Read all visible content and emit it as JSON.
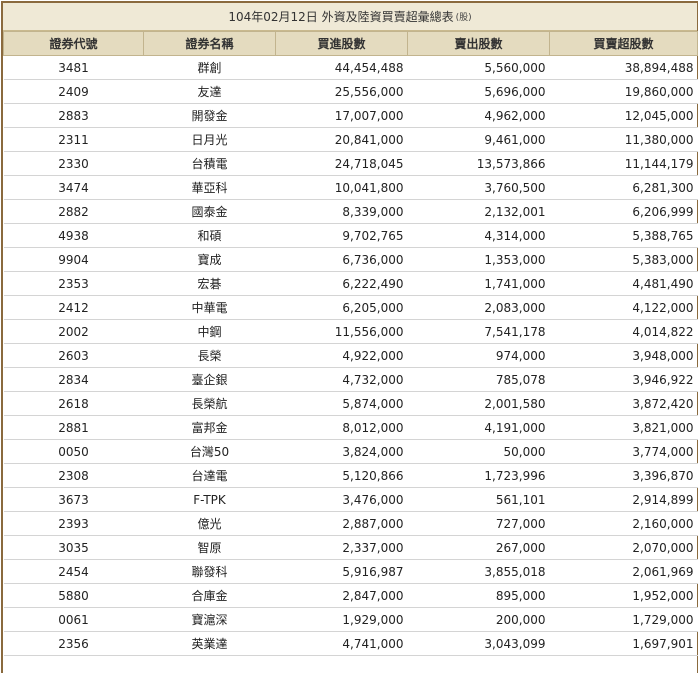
{
  "title": "104年02月12日 外資及陸資買賣超彙總表",
  "title_unit": "(股)",
  "columns": [
    "證券代號",
    "證券名稱",
    "買進股數",
    "賣出股數",
    "買賣超股數"
  ],
  "rows": [
    [
      "3481",
      "群創",
      "44,454,488",
      "5,560,000",
      "38,894,488"
    ],
    [
      "2409",
      "友達",
      "25,556,000",
      "5,696,000",
      "19,860,000"
    ],
    [
      "2883",
      "開發金",
      "17,007,000",
      "4,962,000",
      "12,045,000"
    ],
    [
      "2311",
      "日月光",
      "20,841,000",
      "9,461,000",
      "11,380,000"
    ],
    [
      "2330",
      "台積電",
      "24,718,045",
      "13,573,866",
      "11,144,179"
    ],
    [
      "3474",
      "華亞科",
      "10,041,800",
      "3,760,500",
      "6,281,300"
    ],
    [
      "2882",
      "國泰金",
      "8,339,000",
      "2,132,001",
      "6,206,999"
    ],
    [
      "4938",
      "和碩",
      "9,702,765",
      "4,314,000",
      "5,388,765"
    ],
    [
      "9904",
      "寶成",
      "6,736,000",
      "1,353,000",
      "5,383,000"
    ],
    [
      "2353",
      "宏碁",
      "6,222,490",
      "1,741,000",
      "4,481,490"
    ],
    [
      "2412",
      "中華電",
      "6,205,000",
      "2,083,000",
      "4,122,000"
    ],
    [
      "2002",
      "中鋼",
      "11,556,000",
      "7,541,178",
      "4,014,822"
    ],
    [
      "2603",
      "長榮",
      "4,922,000",
      "974,000",
      "3,948,000"
    ],
    [
      "2834",
      "臺企銀",
      "4,732,000",
      "785,078",
      "3,946,922"
    ],
    [
      "2618",
      "長榮航",
      "5,874,000",
      "2,001,580",
      "3,872,420"
    ],
    [
      "2881",
      "富邦金",
      "8,012,000",
      "4,191,000",
      "3,821,000"
    ],
    [
      "0050",
      "台灣50",
      "3,824,000",
      "50,000",
      "3,774,000"
    ],
    [
      "2308",
      "台達電",
      "5,120,866",
      "1,723,996",
      "3,396,870"
    ],
    [
      "3673",
      "F-TPK",
      "3,476,000",
      "561,101",
      "2,914,899"
    ],
    [
      "2393",
      "億光",
      "2,887,000",
      "727,000",
      "2,160,000"
    ],
    [
      "3035",
      "智原",
      "2,337,000",
      "267,000",
      "2,070,000"
    ],
    [
      "2454",
      "聯發科",
      "5,916,987",
      "3,855,018",
      "2,061,969"
    ],
    [
      "5880",
      "合庫金",
      "2,847,000",
      "895,000",
      "1,952,000"
    ],
    [
      "0061",
      "寶滬深",
      "1,929,000",
      "200,000",
      "1,729,000"
    ],
    [
      "2356",
      "英業達",
      "4,741,000",
      "3,043,099",
      "1,697,901"
    ]
  ]
}
